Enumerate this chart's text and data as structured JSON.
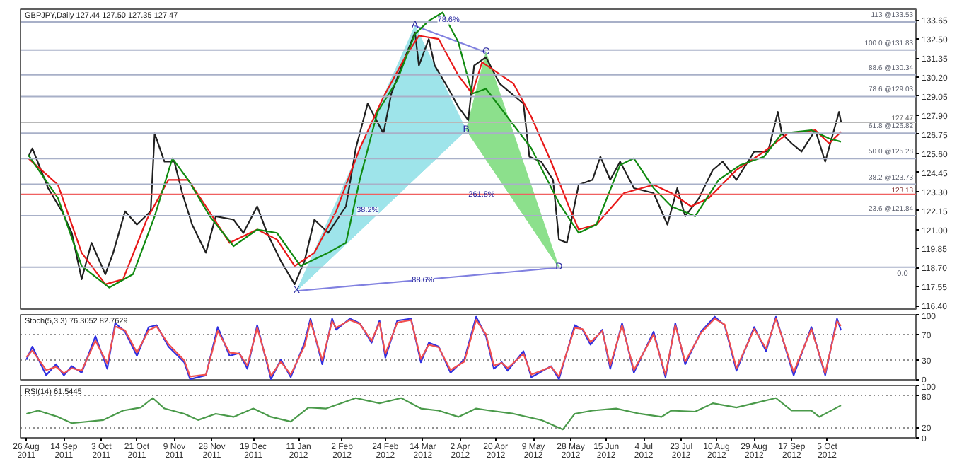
{
  "chart_data": [
    {
      "type": "line",
      "title": "GBPJPY,Daily 127.44 127.50 127.35 127.47",
      "xlim": [
        "2011-08-23",
        "2012-11-19"
      ],
      "ylim": [
        116.2,
        134.3
      ],
      "yticks": [
        133.65,
        {
          "value": 132.5,
          "label": "132.50"
        },
        131.35,
        {
          "value": 130.2,
          "label": "130.20"
        },
        129.05,
        {
          "value": 127.9,
          "label": "127.90"
        },
        126.75,
        {
          "value": 125.6,
          "label": "125.60"
        },
        124.45,
        {
          "value": 123.3,
          "label": "123.30"
        },
        122.15,
        {
          "value": 121.0,
          "label": "121.00"
        },
        119.85,
        {
          "value": 118.7,
          "label": "118.70"
        },
        117.55,
        {
          "value": 116.4,
          "label": "116.40"
        }
      ],
      "tick_labels": "y",
      "grid": false,
      "series": [
        {
          "type": "area",
          "color": "#9ee4ea",
          "x": [
            "2012-01-10",
            "2012-03-10",
            "2012-04-05"
          ],
          "values": [
            117.3,
            133.3,
            127.0
          ]
        },
        {
          "type": "area",
          "color": "#8ce08c",
          "x": [
            "2012-04-05",
            "2012-04-15",
            "2012-05-22"
          ],
          "values": [
            127.0,
            131.7,
            118.7
          ]
        },
        {
          "type": "line",
          "color": "#8080e0",
          "x": [
            "2012-01-10",
            "2012-05-22"
          ],
          "values": [
            117.3,
            118.7
          ]
        },
        {
          "type": "line",
          "color": "#8080e0",
          "x": [
            "2012-03-10",
            "2012-04-15"
          ],
          "values": [
            133.3,
            131.7
          ]
        },
        {
          "type": "line",
          "color": "#202020",
          "x": [
            "2011-08-27",
            "2011-08-29",
            "2011-09-06",
            "2011-09-13",
            "2011-09-18",
            "2011-09-23",
            "2011-09-28",
            "2011-10-05",
            "2011-10-09",
            "2011-10-15",
            "2011-10-21",
            "2011-10-28",
            "2011-10-30",
            "2011-11-04",
            "2011-11-09",
            "2011-11-13",
            "2011-11-18",
            "2011-11-25",
            "2011-11-30",
            "2011-12-09",
            "2011-12-14",
            "2011-12-21",
            "2011-12-26",
            "2012-01-02",
            "2012-01-09",
            "2012-01-14",
            "2012-01-19",
            "2012-01-26",
            "2012-02-04",
            "2012-02-09",
            "2012-02-15",
            "2012-02-23",
            "2012-02-27",
            "2012-03-05",
            "2012-03-10",
            "2012-03-12",
            "2012-03-17",
            "2012-03-20",
            "2012-03-27",
            "2012-04-01",
            "2012-04-06",
            "2012-04-09",
            "2012-04-15",
            "2012-04-22",
            "2012-05-04",
            "2012-05-07",
            "2012-05-13",
            "2012-05-19",
            "2012-05-22",
            "2012-05-26",
            "2012-06-01",
            "2012-06-08",
            "2012-06-12",
            "2012-06-17",
            "2012-06-22",
            "2012-06-29",
            "2012-07-09",
            "2012-07-16",
            "2012-07-21",
            "2012-07-25",
            "2012-08-01",
            "2012-08-08",
            "2012-08-13",
            "2012-08-20",
            "2012-08-29",
            "2012-09-05",
            "2012-09-10",
            "2012-09-12",
            "2012-09-17",
            "2012-09-22",
            "2012-09-29",
            "2012-10-04",
            "2012-10-11",
            "2012-10-12"
          ],
          "values": [
            125.4,
            125.9,
            123.5,
            122.1,
            120.8,
            118.0,
            120.2,
            118.3,
            119.6,
            122.1,
            121.3,
            122.1,
            126.8,
            125.1,
            125.1,
            123.2,
            121.3,
            119.6,
            121.8,
            121.6,
            120.8,
            122.4,
            120.8,
            119.1,
            117.7,
            119.1,
            121.6,
            120.8,
            122.4,
            125.9,
            128.6,
            126.8,
            129.2,
            131.4,
            132.9,
            130.9,
            132.5,
            130.9,
            129.5,
            128.4,
            127.6,
            130.9,
            131.4,
            129.8,
            128.6,
            125.4,
            125.1,
            124.0,
            120.4,
            120.2,
            123.7,
            124.0,
            125.4,
            124.0,
            125.1,
            123.5,
            123.2,
            121.3,
            123.5,
            121.8,
            122.9,
            124.6,
            125.1,
            124.0,
            125.7,
            125.7,
            128.1,
            126.8,
            126.2,
            125.7,
            127.0,
            125.1,
            128.1,
            127.5
          ]
        },
        {
          "type": "line",
          "color": "#e81818",
          "x": [
            "2011-08-27",
            "2011-09-11",
            "2011-09-23",
            "2011-10-05",
            "2011-10-14",
            "2011-10-26",
            "2011-11-06",
            "2011-11-16",
            "2011-11-25",
            "2011-12-07",
            "2011-12-21",
            "2011-12-31",
            "2012-01-09",
            "2012-01-19",
            "2012-01-30",
            "2012-02-11",
            "2012-02-23",
            "2012-03-05",
            "2012-03-12",
            "2012-03-22",
            "2012-04-01",
            "2012-04-08",
            "2012-04-13",
            "2012-04-29",
            "2012-05-08",
            "2012-05-18",
            "2012-05-27",
            "2012-06-01",
            "2012-06-10",
            "2012-06-24",
            "2012-07-09",
            "2012-07-18",
            "2012-07-28",
            "2012-08-06",
            "2012-08-20",
            "2012-09-03",
            "2012-09-15",
            "2012-09-29",
            "2012-10-06",
            "2012-10-12"
          ],
          "values": [
            125.3,
            123.7,
            119.6,
            117.7,
            118.0,
            121.6,
            124.0,
            124.0,
            122.4,
            120.2,
            121.0,
            120.4,
            118.8,
            119.6,
            122.1,
            125.9,
            129.0,
            131.4,
            132.7,
            132.5,
            130.3,
            129.2,
            131.1,
            129.8,
            127.8,
            125.1,
            122.4,
            121.0,
            121.3,
            123.2,
            123.7,
            123.2,
            122.4,
            122.9,
            124.6,
            125.7,
            126.8,
            127.0,
            126.2,
            126.9
          ]
        },
        {
          "type": "line",
          "color": "#108a10",
          "x": [
            "2011-08-27",
            "2011-09-11",
            "2011-09-23",
            "2011-10-07",
            "2011-10-19",
            "2011-10-30",
            "2011-11-08",
            "2011-11-16",
            "2011-11-27",
            "2011-12-09",
            "2011-12-21",
            "2011-12-31",
            "2012-01-12",
            "2012-01-26",
            "2012-02-04",
            "2012-02-11",
            "2012-02-20",
            "2012-03-01",
            "2012-03-10",
            "2012-03-17",
            "2012-03-24",
            "2012-04-01",
            "2012-04-08",
            "2012-04-15",
            "2012-05-08",
            "2012-05-22",
            "2012-06-01",
            "2012-06-10",
            "2012-06-22",
            "2012-06-29",
            "2012-07-09",
            "2012-07-18",
            "2012-07-30",
            "2012-08-11",
            "2012-08-22",
            "2012-09-03",
            "2012-09-12",
            "2012-09-27",
            "2012-10-06",
            "2012-10-12"
          ],
          "values": [
            125.5,
            122.9,
            118.8,
            117.5,
            118.3,
            121.8,
            125.3,
            124.0,
            121.8,
            120.0,
            121.0,
            120.8,
            118.8,
            119.6,
            120.2,
            124.0,
            128.1,
            130.0,
            132.8,
            133.6,
            134.1,
            132.3,
            129.2,
            129.5,
            125.9,
            122.6,
            120.8,
            121.3,
            124.9,
            125.3,
            123.5,
            122.4,
            121.8,
            124.0,
            124.9,
            125.4,
            126.8,
            127.0,
            126.5,
            126.3
          ]
        }
      ],
      "ref_lines": [
        {
          "axis": "y",
          "value": 133.53,
          "label": "113 @133.53",
          "color": "#a8b0c8"
        },
        {
          "axis": "y",
          "value": 131.83,
          "label": "100.0 @131.83",
          "color": "#a8b0c8"
        },
        {
          "axis": "y",
          "value": 130.34,
          "label": "88.6 @130.34",
          "color": "#a8b0c8"
        },
        {
          "axis": "y",
          "value": 129.03,
          "label": "78.6 @129.03",
          "color": "#a8b0c8"
        },
        {
          "axis": "y",
          "value": 126.82,
          "label": "61.8 @126.82",
          "color": "#a8b0c8"
        },
        {
          "axis": "y",
          "value": 125.28,
          "label": "50.0 @125.28",
          "color": "#a8b0c8"
        },
        {
          "axis": "y",
          "value": 123.73,
          "label": "38.2 @123.73",
          "color": "#a8b0c8"
        },
        {
          "axis": "y",
          "value": 121.84,
          "label": "23.6 @121.84",
          "color": "#a8b0c8"
        },
        {
          "axis": "y",
          "value": 118.73,
          "color": "#a8b0c8"
        },
        {
          "axis": "y",
          "value": 127.47,
          "label": "127.47",
          "color": "#b8b8b8"
        },
        {
          "axis": "y",
          "value": 123.13,
          "label": "123.13",
          "color": "#f06060"
        }
      ],
      "annotations": [
        {
          "text": "X",
          "x": "2012-01-10",
          "y": 117.3
        },
        {
          "text": "A",
          "x": "2012-03-10",
          "y": 133.3
        },
        {
          "text": "B",
          "x": "2012-04-05",
          "y": 127.0
        },
        {
          "text": "C",
          "x": "2012-04-15",
          "y": 131.7
        },
        {
          "text": "D",
          "x": "2012-05-22",
          "y": 118.7
        },
        {
          "text": "38.2%",
          "x": "2012-02-15",
          "y": 121.7
        },
        {
          "text": "78.6%",
          "x": "2012-03-27",
          "y": 133.2
        },
        "261.8%",
        {
          "text": "88.6%",
          "x": "2012-03-14",
          "y": 117.5
        },
        "0.0"
      ]
    },
    {
      "type": "line",
      "title": "Stoch(5,3,3) 76.3052 82.7629",
      "xlim": [
        "2011-08-23",
        "2012-11-19"
      ],
      "ylim": [
        0,
        100
      ],
      "yticks": [
        0,
        30,
        70,
        100
      ],
      "tick_labels": "y",
      "grid": "y",
      "x": [
        "2011-08-26",
        "2011-08-29",
        "2011-09-05",
        "2011-09-10",
        "2011-09-14",
        "2011-09-18",
        "2011-09-23",
        "2011-09-30",
        "2011-10-06",
        "2011-10-10",
        "2011-10-15",
        "2011-10-21",
        "2011-10-27",
        "2011-10-31",
        "2011-11-06",
        "2011-11-14",
        "2011-11-17",
        "2011-11-25",
        "2011-12-01",
        "2011-12-07",
        "2011-12-12",
        "2011-12-16",
        "2011-12-21",
        "2011-12-28",
        "2012-01-02",
        "2012-01-07",
        "2012-01-14",
        "2012-01-17",
        "2012-01-23",
        "2012-01-28",
        "2012-01-30",
        "2012-02-06",
        "2012-02-11",
        "2012-02-17",
        "2012-02-21",
        "2012-02-24",
        "2012-03-01",
        "2012-03-08",
        "2012-03-13",
        "2012-03-17",
        "2012-03-22",
        "2012-03-28",
        "2012-04-04",
        "2012-04-10",
        "2012-04-15",
        "2012-04-19",
        "2012-04-23",
        "2012-04-26",
        "2012-05-04",
        "2012-05-08",
        "2012-05-18",
        "2012-05-22",
        "2012-05-30",
        "2012-06-03",
        "2012-06-07",
        "2012-06-13",
        "2012-06-17",
        "2012-06-23",
        "2012-06-29",
        "2012-07-09",
        "2012-07-15",
        "2012-07-20",
        "2012-07-25",
        "2012-08-02",
        "2012-08-09",
        "2012-08-14",
        "2012-08-20",
        "2012-08-29",
        "2012-09-04",
        "2012-09-09",
        "2012-09-18",
        "2012-09-27",
        "2012-10-04",
        "2012-10-10",
        "2012-10-12"
      ],
      "series": [
        {
          "color": "#3030e0",
          "values": [
            31,
            51,
            7,
            24,
            7,
            21,
            11,
            67,
            17,
            87,
            74,
            37,
            81,
            84,
            51,
            27,
            1,
            7,
            81,
            37,
            41,
            17,
            84,
            1,
            31,
            4,
            57,
            94,
            24,
            94,
            77,
            94,
            87,
            57,
            91,
            34,
            91,
            94,
            27,
            57,
            51,
            11,
            31,
            97,
            67,
            17,
            27,
            14,
            44,
            4,
            21,
            1,
            84,
            77,
            54,
            77,
            17,
            87,
            11,
            74,
            4,
            87,
            24,
            74,
            97,
            84,
            14,
            81,
            44,
            97,
            7,
            81,
            7,
            94,
            76
          ]
        },
        {
          "color": "#f05050",
          "values": [
            35,
            45,
            15,
            20,
            10,
            18,
            14,
            60,
            25,
            82,
            76,
            42,
            76,
            82,
            55,
            30,
            5,
            8,
            75,
            42,
            40,
            22,
            80,
            6,
            28,
            8,
            52,
            90,
            30,
            90,
            80,
            92,
            86,
            60,
            88,
            40,
            88,
            92,
            32,
            54,
            50,
            15,
            28,
            92,
            70,
            22,
            26,
            18,
            40,
            8,
            20,
            5,
            80,
            78,
            58,
            75,
            22,
            84,
            15,
            70,
            8,
            84,
            28,
            72,
            94,
            85,
            18,
            78,
            48,
            94,
            12,
            78,
            10,
            90,
            83
          ]
        }
      ]
    },
    {
      "type": "line",
      "title": "RSI(14) 61.5445",
      "xlim": [
        "2011-08-23",
        "2012-11-19"
      ],
      "ylim": [
        0,
        100
      ],
      "yticks": [
        0,
        20,
        80,
        100
      ],
      "grid": "y",
      "xticks": [
        {
          "value": "2011-08-26",
          "label": "26 Aug 2011"
        },
        {
          "value": "2011-09-14",
          "label": "14 Sep 2011"
        },
        {
          "value": "2011-10-03",
          "label": "3 Oct 2011"
        },
        {
          "value": "2011-10-21",
          "label": "21 Oct 2011"
        },
        {
          "value": "2011-11-09",
          "label": "9 Nov 2011"
        },
        {
          "value": "2011-11-28",
          "label": "28 Nov 2011"
        },
        {
          "value": "2011-12-19",
          "label": "19 Dec 2011"
        },
        {
          "value": "2012-01-11",
          "label": "11 Jan 2012"
        },
        {
          "value": "2012-02-02",
          "label": "2 Feb 2012"
        },
        {
          "value": "2012-02-24",
          "label": "24 Feb 2012"
        },
        {
          "value": "2012-03-14",
          "label": "14 Mar 2012"
        },
        {
          "value": "2012-04-02",
          "label": "2 Apr 2012"
        },
        {
          "value": "2012-04-20",
          "label": "20 Apr 2012"
        },
        {
          "value": "2012-05-09",
          "label": "9 May 2012"
        },
        {
          "value": "2012-05-28",
          "label": "28 May 2012"
        },
        {
          "value": "2012-06-15",
          "label": "15 Jun 2012"
        },
        {
          "value": "2012-07-04",
          "label": "4 Jul 2012"
        },
        {
          "value": "2012-07-23",
          "label": "23 Jul 2012"
        },
        {
          "value": "2012-08-10",
          "label": "10 Aug 2012"
        },
        {
          "value": "2012-08-29",
          "label": "29 Aug 2012"
        },
        {
          "value": "2012-09-17",
          "label": "17 Sep 2012"
        },
        {
          "value": "2012-10-05",
          "label": "5 Oct 2012"
        }
      ],
      "series": [
        {
          "color": "#4a9a4a",
          "x": [
            "2011-08-26",
            "2011-09-01",
            "2011-09-11",
            "2011-09-18",
            "2011-10-04",
            "2011-10-14",
            "2011-10-23",
            "2011-10-29",
            "2011-11-04",
            "2011-11-14",
            "2011-11-21",
            "2011-11-30",
            "2011-12-09",
            "2011-12-19",
            "2011-12-28",
            "2012-01-07",
            "2012-01-16",
            "2012-01-25",
            "2012-02-09",
            "2012-02-21",
            "2012-03-03",
            "2012-03-13",
            "2012-03-22",
            "2012-04-01",
            "2012-04-10",
            "2012-04-17",
            "2012-04-29",
            "2012-05-13",
            "2012-05-24",
            "2012-05-30",
            "2012-06-08",
            "2012-06-20",
            "2012-07-02",
            "2012-07-13",
            "2012-07-18",
            "2012-07-30",
            "2012-08-08",
            "2012-08-20",
            "2012-08-29",
            "2012-09-09",
            "2012-09-17",
            "2012-09-27",
            "2012-10-01",
            "2012-10-12"
          ],
          "values": [
            46,
            52,
            40,
            28,
            34,
            52,
            58,
            76,
            56,
            46,
            34,
            46,
            40,
            56,
            40,
            31,
            58,
            56,
            76,
            66,
            76,
            56,
            52,
            40,
            56,
            52,
            46,
            34,
            16,
            46,
            52,
            56,
            46,
            40,
            52,
            50,
            66,
            58,
            66,
            76,
            52,
            52,
            40,
            62
          ]
        }
      ]
    }
  ]
}
